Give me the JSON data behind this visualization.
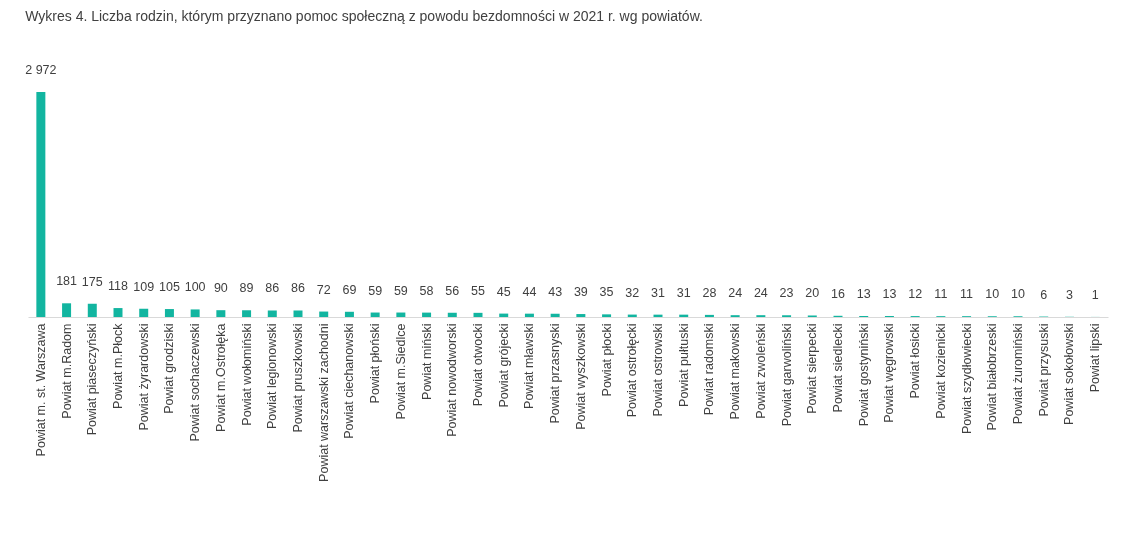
{
  "chart_data": {
    "type": "bar",
    "title": "Wykres 4. Liczba rodzin, którym przyznano pomoc społeczną z powodu bezdomności w 2021 r. wg powiatów.",
    "categories": [
      "Powiat m. st. Warszawa",
      "Powiat m.Radom",
      "Powiat piaseczyński",
      "Powiat m.Płock",
      "Powiat żyrardowski",
      "Powiat grodziski",
      "Powiat sochaczewski",
      "Powiat m.Ostrołęka",
      "Powiat wołomiński",
      "Powiat legionowski",
      "Powiat pruszkowski",
      "Powiat warszawski zachodni",
      "Powiat ciechanowski",
      "Powiat płoński",
      "Powiat m.Siedlce",
      "Powiat miński",
      "Powiat nowodworski",
      "Powiat otwocki",
      "Powiat grójecki",
      "Powiat mławski",
      "Powiat przasnyski",
      "Powiat wyszkowski",
      "Powiat płocki",
      "Powiat ostrołęcki",
      "Powiat ostrowski",
      "Powiat pułtuski",
      "Powiat radomski",
      "Powiat makowski",
      "Powiat zwoleński",
      "Powiat garwoliński",
      "Powiat sierpecki",
      "Powiat siedlecki",
      "Powiat gostyniński",
      "Powiat węgrowski",
      "Powiat łosicki",
      "Powiat kozienicki",
      "Powiat szydłowiecki",
      "Powiat białobrzeski",
      "Powiat żuromiński",
      "Powiat przysuski",
      "Powiat sokołowski",
      "Powiat lipski"
    ],
    "values": [
      2972,
      181,
      175,
      118,
      109,
      105,
      100,
      90,
      89,
      86,
      86,
      72,
      69,
      59,
      59,
      58,
      56,
      55,
      45,
      44,
      43,
      39,
      35,
      32,
      31,
      31,
      28,
      24,
      24,
      23,
      20,
      16,
      13,
      13,
      12,
      11,
      11,
      10,
      10,
      6,
      3,
      1
    ],
    "value_labels": [
      "2 972",
      "181",
      "175",
      "118",
      "109",
      "105",
      "100",
      "90",
      "89",
      "86",
      "86",
      "72",
      "69",
      "59",
      "59",
      "58",
      "56",
      "55",
      "45",
      "44",
      "43",
      "39",
      "35",
      "32",
      "31",
      "31",
      "28",
      "24",
      "24",
      "23",
      "20",
      "16",
      "13",
      "13",
      "12",
      "11",
      "11",
      "10",
      "10",
      "6",
      "3",
      "1"
    ],
    "color": "#12b5a0",
    "grid": false
  }
}
